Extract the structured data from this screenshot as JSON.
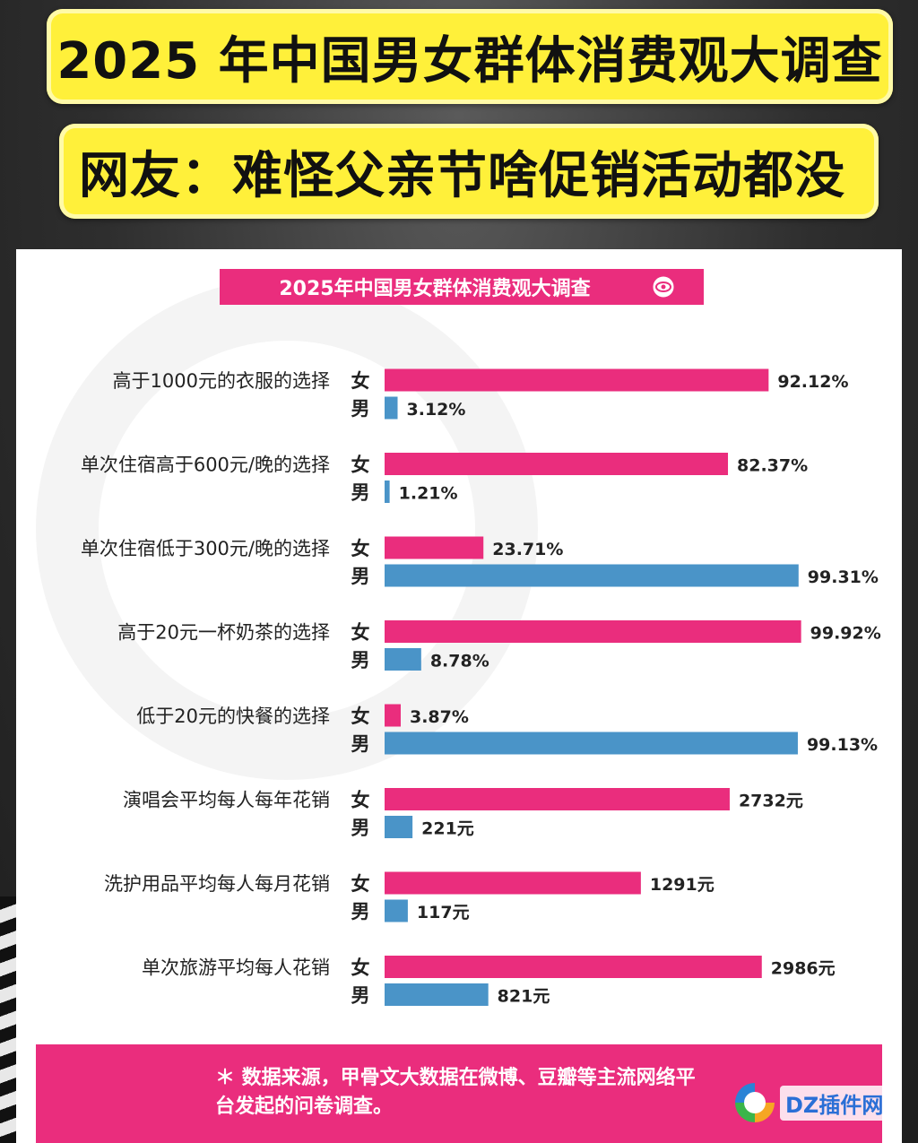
{
  "header": {
    "title": "2025 年中国男女群体消费观大调查",
    "subtitle": "网友：难怪父亲节啥促销活动都没"
  },
  "chart_data": {
    "type": "bar",
    "orientation": "horizontal",
    "title": "2025年中国男女群体消费观大调查",
    "groups": [
      {
        "label": "高于1000元的衣服的选择",
        "female": 92.12,
        "male": 3.12,
        "unit": "%",
        "scale_max": 100
      },
      {
        "label": "单次住宿高于600元/晚的选择",
        "female": 82.37,
        "male": 1.21,
        "unit": "%",
        "scale_max": 100
      },
      {
        "label": "单次住宿低于300元/晚的选择",
        "female": 23.71,
        "male": 99.31,
        "unit": "%",
        "scale_max": 100
      },
      {
        "label": "高于20元一杯奶茶的选择",
        "female": 99.92,
        "male": 8.78,
        "unit": "%",
        "scale_max": 100
      },
      {
        "label": "低于20元的快餐的选择",
        "female": 3.87,
        "male": 99.13,
        "unit": "%",
        "scale_max": 100
      },
      {
        "label": "演唱会平均每人每年花销",
        "female": 2732,
        "male": 221,
        "unit": "元",
        "scale_max": 3300
      },
      {
        "label": "洗护用品平均每人每月花销",
        "female": 1291,
        "male": 117,
        "unit": "元",
        "scale_max": 2100
      },
      {
        "label": "单次旅游平均每人花销",
        "female": 2986,
        "male": 821,
        "unit": "元",
        "scale_max": 3300
      }
    ],
    "value_labels": [
      {
        "female": "92.12%",
        "male": "3.12%"
      },
      {
        "female": "82.37%",
        "male": "1.21%"
      },
      {
        "female": "23.71%",
        "male": "99.31%"
      },
      {
        "female": "99.92%",
        "male": "8.78%"
      },
      {
        "female": "3.87%",
        "male": "99.13%"
      },
      {
        "female": "2732元",
        "male": "221元"
      },
      {
        "female": "1291元",
        "male": "117元"
      },
      {
        "female": "2986元",
        "male": "821元"
      }
    ],
    "series_labels": {
      "female": "女",
      "male": "男"
    },
    "colors": {
      "female": "#ea2d7d",
      "male": "#4a94c8"
    }
  },
  "footer": {
    "note_line1": "＊ 数据来源，甲骨文大数据在微博、豆瓣等主流网络平",
    "note_line2": "台发起的问卷调查。"
  },
  "watermark": {
    "text": "DZ插件网"
  }
}
